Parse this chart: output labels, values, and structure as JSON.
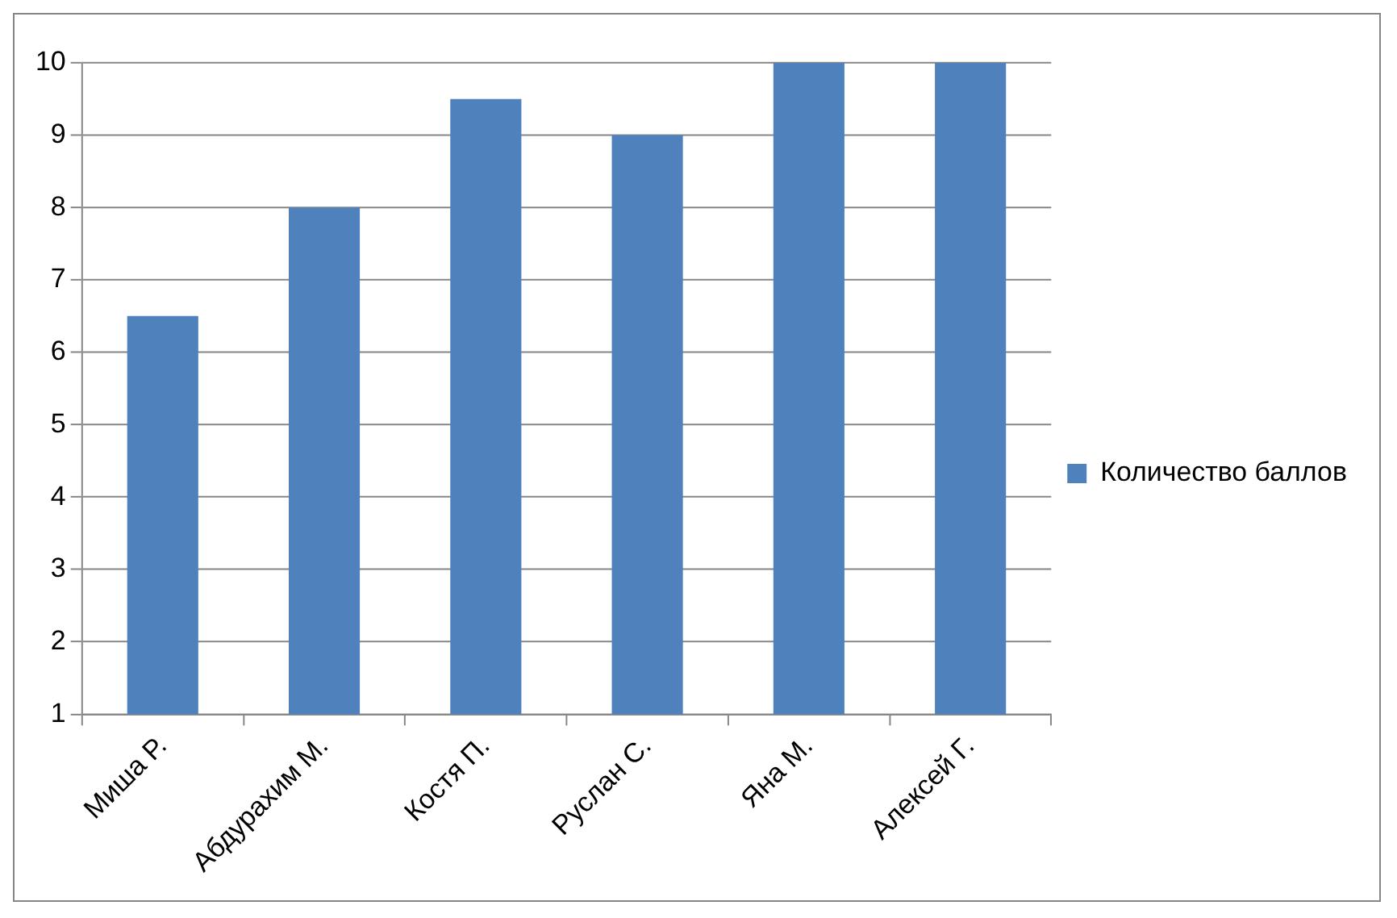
{
  "chart_data": {
    "type": "bar",
    "categories": [
      "Миша Р.",
      "Абдурахим М.",
      "Костя П.",
      "Руслан С.",
      "Яна М.",
      "Алексей Г."
    ],
    "series": [
      {
        "name": "Количество баллов",
        "color": "#4f81bd",
        "values": [
          6.5,
          8,
          9.5,
          9,
          10,
          10
        ]
      }
    ],
    "ylim": [
      1,
      10
    ],
    "yticks": [
      1,
      2,
      3,
      4,
      5,
      6,
      7,
      8,
      9,
      10
    ],
    "grid": "y",
    "legend": "right"
  }
}
